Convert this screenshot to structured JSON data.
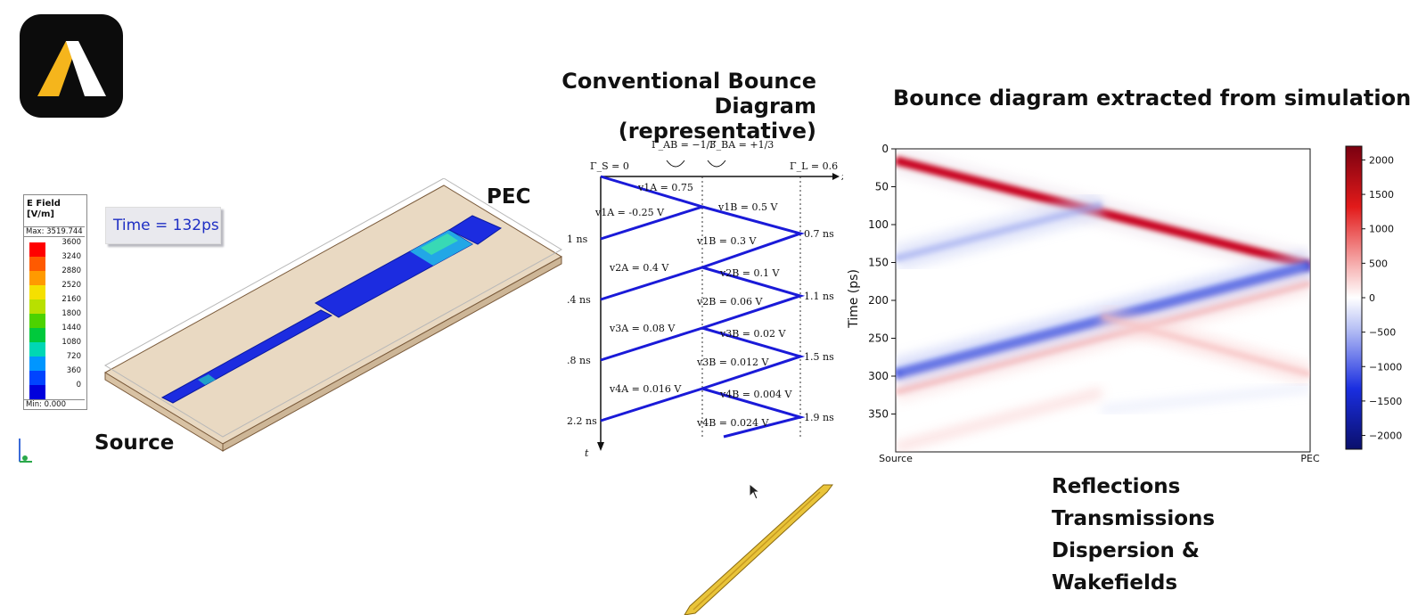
{
  "left_panel": {
    "legend": {
      "title_line1": "E Field",
      "title_line2": "[V/m]",
      "max_label": "Max: 3519.744",
      "min_label": "Min:   0.000",
      "entries": [
        {
          "value": "3600",
          "color": "#ff0000"
        },
        {
          "value": "3240",
          "color": "#ff5a00"
        },
        {
          "value": "2880",
          "color": "#ff9a00"
        },
        {
          "value": "2520",
          "color": "#f5e000"
        },
        {
          "value": "2160",
          "color": "#b8e000"
        },
        {
          "value": "1800",
          "color": "#4cd200"
        },
        {
          "value": "1440",
          "color": "#00c93c"
        },
        {
          "value": "1080",
          "color": "#00d7b4"
        },
        {
          "value": "720",
          "color": "#0096ff"
        },
        {
          "value": "360",
          "color": "#0044ff"
        },
        {
          "value": "0",
          "color": "#0000dc"
        }
      ]
    },
    "time_label": "Time = 132ps",
    "source_label": "Source",
    "pec_label": "PEC"
  },
  "middle_panel": {
    "title_line1": "Conventional Bounce Diagram",
    "title_line2": "(representative)",
    "gamma_s": "Γ_S = 0",
    "gamma_ab": "Γ_AB = −1/3",
    "gamma_ba": "Γ_BA = +1/3",
    "gamma_l": "Γ_L = 0.6",
    "z_label": "z",
    "t_label": "t",
    "waves": [
      "v1A = 0.75",
      "v1A = -0.25 V",
      "v1B = 0.5 V",
      "v1B = 0.3 V",
      "v2A = 0.4 V",
      "v2B = 0.1 V",
      "v2B = 0.06 V",
      "v3A = 0.08 V",
      "v3B = 0.02 V",
      "v3B = 0.012 V",
      "v4A = 0.016 V",
      "v4B = 0.004 V",
      "v4B = 0.024 V"
    ],
    "left_times": [
      "1 ns",
      ".4 ns",
      ".8 ns",
      "2.2 ns"
    ],
    "right_times": [
      "0.7 ns",
      "1.1 ns",
      "1.5 ns",
      "1.9 ns"
    ]
  },
  "right_panel": {
    "title": "Bounce diagram extracted from simulation",
    "ylabel": "Time (ps)",
    "x_left": "Source",
    "x_right": "PEC",
    "colors": {
      "positive": "#b2001a",
      "negative": "#001fa8"
    }
  },
  "bullets": [
    "Reflections",
    "Transmissions",
    "Dispersion &",
    "Wakefields"
  ],
  "chart_data": {
    "type": "heatmap",
    "title": "Bounce diagram extracted from simulation",
    "ylabel": "Time (ps)",
    "x_tick_labels": [
      "Source",
      "PEC"
    ],
    "y_ticks": [
      0,
      50,
      100,
      150,
      200,
      250,
      300,
      350
    ],
    "ylim": [
      400,
      0
    ],
    "colorbar_ticks": [
      2000,
      1500,
      1000,
      500,
      0,
      -500,
      -1000,
      -1500,
      -2000
    ],
    "colorbar_range": [
      -2200,
      2200
    ],
    "colormap": "seismic"
  }
}
